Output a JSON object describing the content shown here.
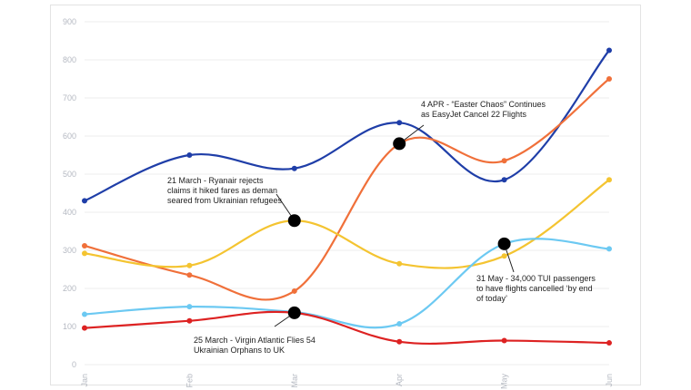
{
  "chart_data": {
    "type": "line",
    "categories": [
      "Jan",
      "Feb",
      "Mar",
      "Apr",
      "May",
      "Jun"
    ],
    "ylim": [
      0,
      900
    ],
    "yticks": [
      0,
      100,
      200,
      300,
      400,
      500,
      600,
      700,
      800,
      900
    ],
    "grid": true,
    "series": [
      {
        "color": "#1f3ea8",
        "values": [
          430,
          550,
          515,
          635,
          485,
          825
        ]
      },
      {
        "color": "#f0703a",
        "values": [
          312,
          235,
          193,
          580,
          535,
          750
        ]
      },
      {
        "color": "#f4c431",
        "values": [
          292,
          260,
          378,
          265,
          285,
          485
        ]
      },
      {
        "color": "#6cc9f2",
        "values": [
          132,
          152,
          138,
          107,
          317,
          304
        ]
      },
      {
        "color": "#dd2222",
        "values": [
          96,
          115,
          136,
          60,
          63,
          57
        ]
      }
    ],
    "annotations": [
      {
        "x": "Apr",
        "y": 580,
        "lines": [
          "4 APR - “Easter Chaos” Continues",
          "as EasyJet Cancel 22 Flights"
        ]
      },
      {
        "x": "Mar",
        "y": 378,
        "lines": [
          "21 March - Ryanair rejects",
          "claims it hiked fares as deman",
          "seared from Ukrainian refugees"
        ]
      },
      {
        "x": "May",
        "y": 317,
        "lines": [
          "31 May - 34,000 TUI passengers",
          "to have flights cancelled ‘by end",
          "of today’"
        ]
      },
      {
        "x": "Mar",
        "y": 136,
        "lines": [
          "25 March - Virgin Atlantic Flies 54",
          "Ukrainian Orphans to UK"
        ]
      }
    ]
  }
}
